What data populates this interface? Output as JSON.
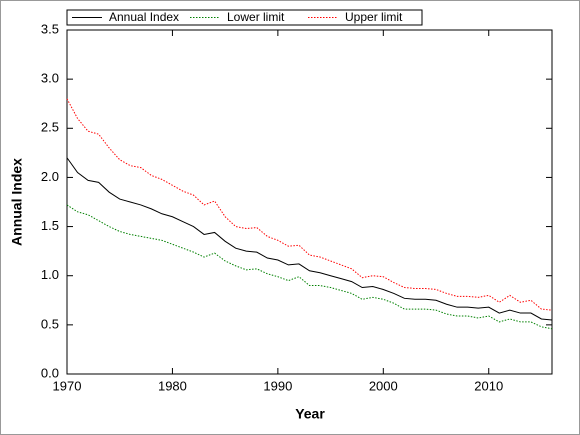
{
  "chart_data": {
    "type": "line",
    "xlabel": "Year",
    "ylabel": "Annual Index",
    "x": [
      1970,
      1971,
      1972,
      1973,
      1974,
      1975,
      1976,
      1977,
      1978,
      1979,
      1980,
      1981,
      1982,
      1983,
      1984,
      1985,
      1986,
      1987,
      1988,
      1989,
      1990,
      1991,
      1992,
      1993,
      1994,
      1995,
      1996,
      1997,
      1998,
      1999,
      2000,
      2001,
      2002,
      2003,
      2004,
      2005,
      2006,
      2007,
      2008,
      2009,
      2010,
      2011,
      2012,
      2013,
      2014,
      2015,
      2016
    ],
    "series": [
      {
        "name": "Annual Index",
        "color": "#000000",
        "dash": false,
        "values": [
          2.2,
          2.05,
          1.97,
          1.95,
          1.85,
          1.78,
          1.75,
          1.72,
          1.68,
          1.63,
          1.6,
          1.55,
          1.5,
          1.42,
          1.44,
          1.35,
          1.28,
          1.25,
          1.24,
          1.18,
          1.16,
          1.11,
          1.12,
          1.05,
          1.03,
          1.0,
          0.97,
          0.94,
          0.88,
          0.89,
          0.86,
          0.82,
          0.77,
          0.76,
          0.76,
          0.75,
          0.71,
          0.68,
          0.68,
          0.67,
          0.68,
          0.62,
          0.65,
          0.62,
          0.62,
          0.56,
          0.55
        ]
      },
      {
        "name": "Lower limit",
        "color": "#008000",
        "dash": true,
        "values": [
          1.72,
          1.65,
          1.62,
          1.56,
          1.5,
          1.45,
          1.42,
          1.4,
          1.38,
          1.36,
          1.32,
          1.28,
          1.24,
          1.19,
          1.23,
          1.15,
          1.1,
          1.06,
          1.07,
          1.02,
          0.99,
          0.95,
          0.99,
          0.9,
          0.9,
          0.88,
          0.85,
          0.82,
          0.76,
          0.78,
          0.76,
          0.72,
          0.66,
          0.66,
          0.66,
          0.65,
          0.61,
          0.59,
          0.59,
          0.57,
          0.59,
          0.53,
          0.56,
          0.53,
          0.53,
          0.48,
          0.46
        ]
      },
      {
        "name": "Upper limit",
        "color": "#ff0000",
        "dash": true,
        "values": [
          2.8,
          2.6,
          2.47,
          2.44,
          2.3,
          2.18,
          2.12,
          2.1,
          2.02,
          1.98,
          1.92,
          1.86,
          1.82,
          1.72,
          1.76,
          1.6,
          1.5,
          1.48,
          1.49,
          1.4,
          1.36,
          1.3,
          1.31,
          1.21,
          1.19,
          1.15,
          1.11,
          1.07,
          0.98,
          1.0,
          0.99,
          0.93,
          0.88,
          0.87,
          0.87,
          0.86,
          0.82,
          0.79,
          0.79,
          0.78,
          0.8,
          0.73,
          0.8,
          0.73,
          0.75,
          0.66,
          0.65
        ]
      }
    ],
    "xlim": [
      1970,
      2016
    ],
    "xticks": [
      1970,
      1980,
      1990,
      2000,
      2010
    ],
    "ylim": [
      0,
      3.5
    ],
    "yticks": [
      {
        "value": 0,
        "label": "0.0"
      },
      0.5,
      {
        "value": 1,
        "label": "1.0"
      },
      1.5,
      {
        "value": 2,
        "label": "2.0"
      },
      2.5,
      {
        "value": 3,
        "label": "3.0"
      },
      3.5
    ],
    "grid": false,
    "legend": "top"
  }
}
